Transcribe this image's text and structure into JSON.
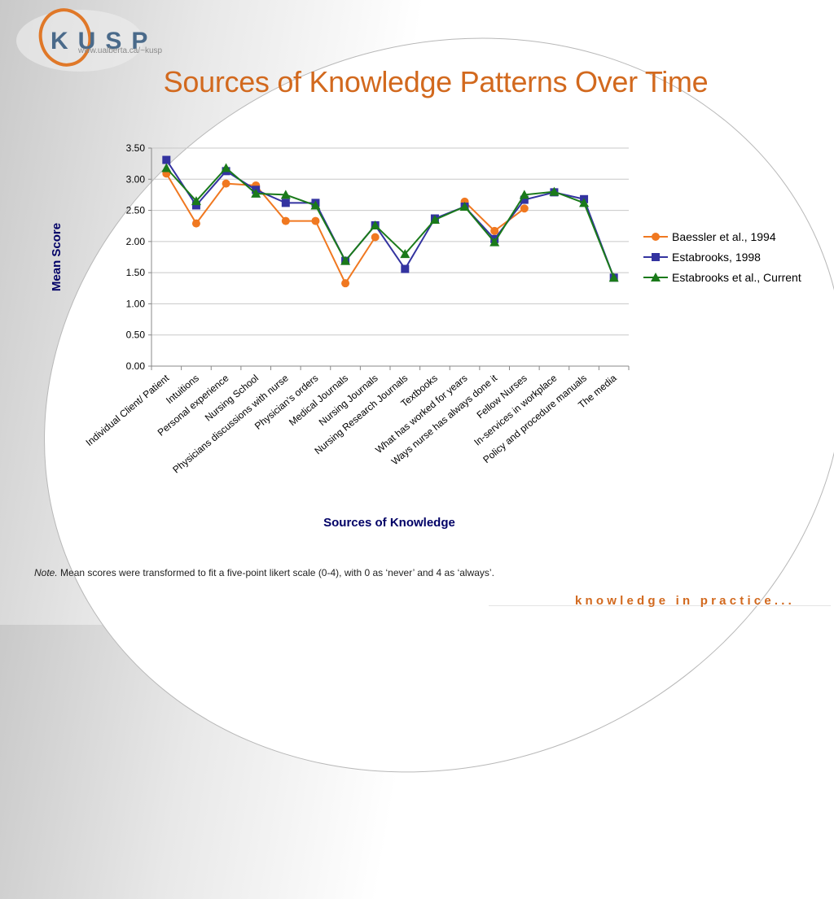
{
  "logo": {
    "text": "KUSP",
    "url": "www.ualberta.ca/~kusp"
  },
  "slide": {
    "title": "Sources of Knowledge Patterns Over Time"
  },
  "note": {
    "prefix": "Note.",
    "text": " Mean scores were transformed to fit a five-point likert scale (0-4), with 0 as ‘never’ and 4 as ‘always’."
  },
  "footer": {
    "tagline": "knowledge in practice..."
  },
  "colors": {
    "title": "#d2691e",
    "axis_title": "#000066",
    "series": [
      "#f07820",
      "#3333a0",
      "#1a7a1a"
    ]
  },
  "chart_data": {
    "type": "line",
    "xlabel": "Sources of Knowledge",
    "ylabel": "Mean Score",
    "ylim": [
      0,
      3.5
    ],
    "yticks": [
      "0.00",
      "0.50",
      "1.00",
      "1.50",
      "2.00",
      "2.50",
      "3.00",
      "3.50"
    ],
    "grid": true,
    "legend_position": "right",
    "categories": [
      "Individual Client/ Patient",
      "Intuitions",
      "Personal experience",
      "Nursing School",
      "Physicians discussions with nurse",
      "Physician’s orders",
      "Medical Journals",
      "Nursing Journals",
      "Nursing Research Journals",
      "Textbooks",
      "What has worked for years",
      "Ways nurse has always done it",
      "Fellow Nurses",
      "In-services in workplace",
      "Policy and procedure manuals",
      "The media"
    ],
    "series": [
      {
        "name": "Baessler et al., 1994",
        "marker": "circle",
        "values": [
          3.09,
          2.29,
          2.93,
          2.9,
          2.33,
          2.33,
          1.33,
          2.07,
          null,
          null,
          2.64,
          2.17,
          2.53,
          null,
          null,
          null
        ]
      },
      {
        "name": "Estabrooks, 1998",
        "marker": "square",
        "values": [
          3.31,
          2.58,
          3.13,
          2.83,
          2.62,
          2.62,
          1.69,
          2.26,
          1.56,
          2.37,
          2.56,
          2.04,
          2.67,
          2.79,
          2.68,
          1.42
        ]
      },
      {
        "name": "Estabrooks et al., Current",
        "marker": "triangle",
        "values": [
          3.18,
          2.65,
          3.18,
          2.77,
          2.75,
          2.58,
          1.69,
          2.26,
          1.8,
          2.35,
          2.56,
          1.99,
          2.75,
          2.8,
          2.62,
          1.42
        ]
      }
    ]
  }
}
